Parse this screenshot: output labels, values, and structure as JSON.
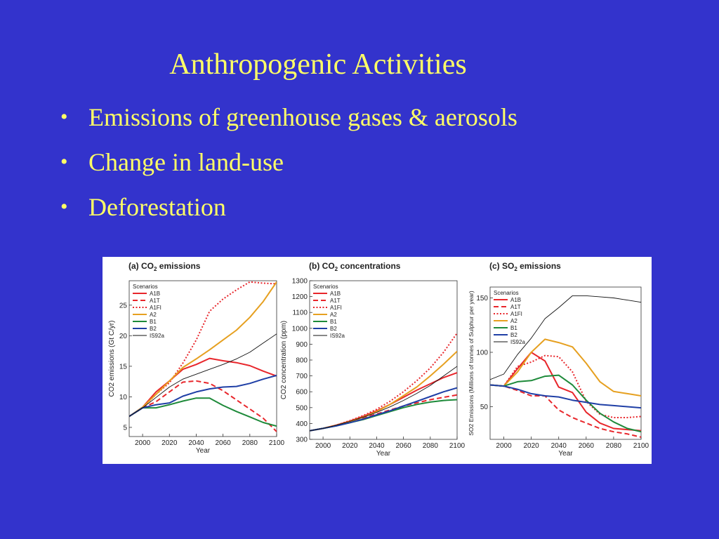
{
  "slide": {
    "title": "Anthropogenic Activities",
    "bullets": [
      "Emissions of greenhouse gases & aerosols",
      "Change in land-use",
      "Deforestation"
    ],
    "colors": {
      "background": "#3333cc",
      "text": "#ffff66"
    }
  },
  "chart_data": [
    {
      "type": "line",
      "panel_label": "(a) CO",
      "panel_sub": "2",
      "panel_suffix": " emissions",
      "ylabel": "CO2 emissions (Gt C/yr)",
      "xlabel": "Year",
      "xlim": [
        1990,
        2100
      ],
      "ylim": [
        3.5,
        29
      ],
      "xticks": [
        2000,
        2020,
        2040,
        2060,
        2080,
        2100
      ],
      "yticks": [
        5,
        10,
        15,
        20,
        25
      ],
      "legend_title": "Scenarios",
      "legend_position": "top-left",
      "series": [
        {
          "name": "A1B",
          "color": "#e8262b",
          "dash": "solid",
          "x": [
            1990,
            2000,
            2010,
            2020,
            2030,
            2040,
            2050,
            2060,
            2070,
            2080,
            2090,
            2100
          ],
          "values": [
            6.8,
            8.3,
            10.8,
            12.6,
            14.5,
            15.3,
            16.3,
            15.9,
            15.6,
            15.1,
            14.2,
            13.4
          ]
        },
        {
          "name": "A1T",
          "color": "#e8262b",
          "dash": "dashed",
          "x": [
            1990,
            2000,
            2010,
            2020,
            2030,
            2040,
            2050,
            2060,
            2070,
            2080,
            2090,
            2100
          ],
          "values": [
            6.8,
            8.2,
            9.2,
            10.8,
            12.4,
            12.6,
            12.2,
            11.0,
            9.5,
            8.0,
            6.5,
            4.3
          ]
        },
        {
          "name": "A1FI",
          "color": "#e8262b",
          "dash": "dotted",
          "x": [
            1990,
            2000,
            2010,
            2020,
            2030,
            2040,
            2050,
            2060,
            2070,
            2080,
            2090,
            2100
          ],
          "values": [
            6.8,
            8.2,
            10.4,
            12.3,
            15.5,
            19.3,
            24.0,
            26.0,
            27.5,
            28.8,
            28.6,
            28.5
          ]
        },
        {
          "name": "A2",
          "color": "#e6a020",
          "dash": "solid",
          "x": [
            1990,
            2000,
            2010,
            2020,
            2030,
            2040,
            2050,
            2060,
            2070,
            2080,
            2090,
            2100
          ],
          "values": [
            6.8,
            8.3,
            10.4,
            12.6,
            14.8,
            16.2,
            17.7,
            19.3,
            20.9,
            23.0,
            25.6,
            28.8
          ]
        },
        {
          "name": "B1",
          "color": "#1e8a3a",
          "dash": "solid",
          "x": [
            1990,
            2000,
            2010,
            2020,
            2030,
            2040,
            2050,
            2060,
            2070,
            2080,
            2090,
            2100
          ],
          "values": [
            6.8,
            8.2,
            8.2,
            8.7,
            9.3,
            9.8,
            9.8,
            8.6,
            7.6,
            6.7,
            5.8,
            5.2
          ]
        },
        {
          "name": "B2",
          "color": "#1f3fa6",
          "dash": "solid",
          "x": [
            1990,
            2000,
            2010,
            2020,
            2030,
            2040,
            2050,
            2060,
            2070,
            2080,
            2090,
            2100
          ],
          "values": [
            6.8,
            8.2,
            8.7,
            9.0,
            10.1,
            10.8,
            11.3,
            11.6,
            11.7,
            12.2,
            12.9,
            13.5
          ]
        },
        {
          "name": "IS92a",
          "color": "#111111",
          "dash": "thin",
          "x": [
            1990,
            2000,
            2010,
            2020,
            2030,
            2040,
            2050,
            2060,
            2070,
            2080,
            2090,
            2100
          ],
          "values": [
            6.8,
            8.2,
            9.9,
            11.6,
            12.9,
            13.7,
            14.5,
            15.3,
            16.2,
            17.3,
            18.8,
            20.3
          ]
        }
      ]
    },
    {
      "type": "line",
      "panel_label": "(b) CO",
      "panel_sub": "2",
      "panel_suffix": " concentrations",
      "ylabel": "CO2 concentration (ppm)",
      "xlabel": "Year",
      "xlim": [
        1990,
        2100
      ],
      "ylim": [
        300,
        1300
      ],
      "xticks": [
        2000,
        2020,
        2040,
        2060,
        2080,
        2100
      ],
      "yticks": [
        300,
        400,
        500,
        600,
        700,
        800,
        900,
        1000,
        1100,
        1200,
        1300
      ],
      "legend_title": "Scenarios",
      "legend_position": "top-left",
      "series": [
        {
          "name": "A1B",
          "color": "#e8262b",
          "dash": "solid",
          "x": [
            1990,
            2000,
            2010,
            2020,
            2030,
            2040,
            2050,
            2060,
            2070,
            2080,
            2090,
            2100
          ],
          "values": [
            354,
            369,
            390,
            415,
            445,
            480,
            520,
            565,
            610,
            650,
            690,
            720
          ]
        },
        {
          "name": "A1T",
          "color": "#e8262b",
          "dash": "dashed",
          "x": [
            1990,
            2000,
            2010,
            2020,
            2030,
            2040,
            2050,
            2060,
            2070,
            2080,
            2090,
            2100
          ],
          "values": [
            354,
            369,
            388,
            410,
            435,
            460,
            485,
            510,
            530,
            550,
            565,
            580
          ]
        },
        {
          "name": "A1FI",
          "color": "#e8262b",
          "dash": "dotted",
          "x": [
            1990,
            2000,
            2010,
            2020,
            2030,
            2040,
            2050,
            2060,
            2070,
            2080,
            2090,
            2100
          ],
          "values": [
            354,
            369,
            390,
            418,
            450,
            490,
            540,
            600,
            670,
            750,
            850,
            970
          ]
        },
        {
          "name": "A2",
          "color": "#e6a020",
          "dash": "solid",
          "x": [
            1990,
            2000,
            2010,
            2020,
            2030,
            2040,
            2050,
            2060,
            2070,
            2080,
            2090,
            2100
          ],
          "values": [
            354,
            369,
            388,
            412,
            440,
            475,
            520,
            575,
            630,
            700,
            775,
            855
          ]
        },
        {
          "name": "B1",
          "color": "#1e8a3a",
          "dash": "solid",
          "x": [
            1990,
            2000,
            2010,
            2020,
            2030,
            2040,
            2050,
            2060,
            2070,
            2080,
            2090,
            2100
          ],
          "values": [
            354,
            369,
            385,
            405,
            425,
            450,
            475,
            500,
            520,
            535,
            545,
            550
          ]
        },
        {
          "name": "B2",
          "color": "#1f3fa6",
          "dash": "solid",
          "x": [
            1990,
            2000,
            2010,
            2020,
            2030,
            2040,
            2050,
            2060,
            2070,
            2080,
            2090,
            2100
          ],
          "values": [
            354,
            369,
            385,
            405,
            428,
            455,
            480,
            510,
            540,
            570,
            600,
            625
          ]
        },
        {
          "name": "IS92a",
          "color": "#111111",
          "dash": "thin",
          "x": [
            1990,
            2000,
            2010,
            2020,
            2030,
            2040,
            2050,
            2060,
            2070,
            2080,
            2090,
            2100
          ],
          "values": [
            354,
            369,
            390,
            413,
            440,
            470,
            505,
            545,
            590,
            640,
            700,
            760
          ]
        }
      ]
    },
    {
      "type": "line",
      "panel_label": "(c) SO",
      "panel_sub": "2",
      "panel_suffix": " emissions",
      "ylabel": "SO2 Emissions (Millions of tonnes of Sulphur per year)",
      "xlabel": "Year",
      "xlim": [
        1990,
        2100
      ],
      "ylim": [
        20,
        160
      ],
      "xticks": [
        2000,
        2020,
        2040,
        2060,
        2080,
        2100
      ],
      "yticks": [
        50,
        100,
        150
      ],
      "legend_title": "Scenarios",
      "legend_position": "top-left",
      "series": [
        {
          "name": "A1B",
          "color": "#e8262b",
          "dash": "solid",
          "x": [
            1990,
            2000,
            2010,
            2020,
            2030,
            2040,
            2050,
            2060,
            2070,
            2080,
            2090,
            2100
          ],
          "values": [
            70,
            69,
            85,
            100,
            92,
            68,
            63,
            45,
            35,
            30,
            29,
            28
          ]
        },
        {
          "name": "A1T",
          "color": "#e8262b",
          "dash": "dashed",
          "x": [
            1990,
            2000,
            2010,
            2020,
            2030,
            2040,
            2050,
            2060,
            2070,
            2080,
            2090,
            2100
          ],
          "values": [
            70,
            69,
            65,
            60,
            60,
            47,
            40,
            35,
            30,
            27,
            25,
            22
          ]
        },
        {
          "name": "A1FI",
          "color": "#e8262b",
          "dash": "dotted",
          "x": [
            1990,
            2000,
            2010,
            2020,
            2030,
            2040,
            2050,
            2060,
            2070,
            2080,
            2090,
            2100
          ],
          "values": [
            70,
            69,
            87,
            91,
            97,
            96,
            82,
            55,
            43,
            40,
            40,
            41
          ]
        },
        {
          "name": "A2",
          "color": "#e6a020",
          "dash": "solid",
          "x": [
            1990,
            2000,
            2010,
            2020,
            2030,
            2040,
            2050,
            2060,
            2070,
            2080,
            2090,
            2100
          ],
          "values": [
            70,
            69,
            82,
            100,
            112,
            109,
            105,
            90,
            73,
            64,
            62,
            60
          ]
        },
        {
          "name": "B1",
          "color": "#1e8a3a",
          "dash": "solid",
          "x": [
            1990,
            2000,
            2010,
            2020,
            2030,
            2040,
            2050,
            2060,
            2070,
            2080,
            2090,
            2100
          ],
          "values": [
            70,
            69,
            73,
            74,
            78,
            79,
            70,
            56,
            44,
            36,
            30,
            27
          ]
        },
        {
          "name": "B2",
          "color": "#1f3fa6",
          "dash": "solid",
          "x": [
            1990,
            2000,
            2010,
            2020,
            2030,
            2040,
            2050,
            2060,
            2070,
            2080,
            2090,
            2100
          ],
          "values": [
            70,
            69,
            66,
            62,
            60,
            59,
            56,
            54,
            52,
            51,
            50,
            49
          ]
        },
        {
          "name": "IS92a",
          "color": "#111111",
          "dash": "thin",
          "x": [
            1990,
            2000,
            2010,
            2020,
            2030,
            2040,
            2050,
            2060,
            2070,
            2080,
            2090,
            2100
          ],
          "values": [
            75,
            80,
            98,
            113,
            131,
            141,
            152,
            152,
            151,
            150,
            148,
            146
          ]
        }
      ]
    }
  ]
}
